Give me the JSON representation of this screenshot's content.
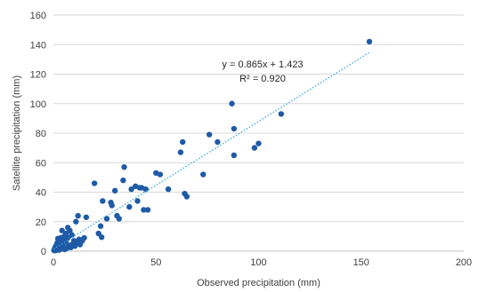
{
  "chart_data": {
    "type": "scatter",
    "xlabel": "Observed precipitation (mm)",
    "ylabel": "Satellite precipitation (mm)",
    "xlim": [
      0,
      200
    ],
    "ylim": [
      0,
      160
    ],
    "xticks": [
      0,
      50,
      100,
      150,
      200
    ],
    "yticks": [
      0,
      20,
      40,
      60,
      80,
      100,
      120,
      140,
      160
    ],
    "grid": "horizontal",
    "point_color": "#1f5aa6",
    "trendline": {
      "type": "linear",
      "slope": 0.865,
      "intercept": 1.423,
      "color": "#39a9dc",
      "style": "dotted",
      "x_range": [
        0,
        154
      ]
    },
    "annotations": {
      "equation": "y = 0.865x + 1.423",
      "r_squared": "R² = 0.920"
    },
    "series": [
      {
        "points": [
          [
            0.3,
            0.5
          ],
          [
            0.5,
            1.2
          ],
          [
            0.8,
            2.5
          ],
          [
            1.0,
            0.4
          ],
          [
            1.2,
            3.5
          ],
          [
            1.5,
            1.0
          ],
          [
            1.8,
            5.5
          ],
          [
            2.0,
            2.0
          ],
          [
            2.2,
            8.5
          ],
          [
            2.5,
            4.0
          ],
          [
            2.8,
            0.8
          ],
          [
            3.0,
            6.0
          ],
          [
            3.2,
            2.8
          ],
          [
            3.5,
            9.0
          ],
          [
            3.8,
            1.5
          ],
          [
            4.0,
            5.0
          ],
          [
            4.2,
            14.0
          ],
          [
            4.5,
            7.5
          ],
          [
            5.0,
            3.0
          ],
          [
            5.2,
            10.0
          ],
          [
            5.5,
            1.2
          ],
          [
            6.0,
            6.5
          ],
          [
            6.2,
            12.0
          ],
          [
            6.5,
            2.0
          ],
          [
            7.0,
            16.0
          ],
          [
            7.2,
            9.0
          ],
          [
            7.5,
            4.0
          ],
          [
            8.0,
            14.0
          ],
          [
            8.5,
            2.5
          ],
          [
            9.0,
            11.0
          ],
          [
            9.5,
            5.0
          ],
          [
            10.0,
            7.0
          ],
          [
            10.5,
            3.5
          ],
          [
            11.0,
            20.0
          ],
          [
            11.5,
            6.0
          ],
          [
            12.0,
            24.0
          ],
          [
            12.5,
            8.0
          ],
          [
            13.0,
            4.5
          ],
          [
            14.0,
            7.0
          ],
          [
            15.0,
            9.0
          ],
          [
            16.0,
            23.0
          ],
          [
            20.0,
            46.0
          ],
          [
            22.0,
            12.0
          ],
          [
            23.0,
            17.0
          ],
          [
            23.5,
            9.5
          ],
          [
            24.0,
            34.0
          ],
          [
            26.0,
            22.0
          ],
          [
            28.0,
            33.0
          ],
          [
            28.5,
            31.0
          ],
          [
            30.0,
            41.0
          ],
          [
            31.0,
            24.0
          ],
          [
            32.0,
            22.0
          ],
          [
            34.0,
            48.0
          ],
          [
            34.5,
            57.0
          ],
          [
            37.0,
            30.0
          ],
          [
            38.0,
            42.0
          ],
          [
            40.0,
            44.0
          ],
          [
            41.0,
            34.0
          ],
          [
            42.0,
            43.0
          ],
          [
            43.0,
            43.0
          ],
          [
            44.0,
            28.0
          ],
          [
            45.0,
            42.0
          ],
          [
            46.0,
            28.0
          ],
          [
            50.0,
            53.0
          ],
          [
            52.0,
            52.0
          ],
          [
            56.0,
            42.0
          ],
          [
            62.0,
            67.0
          ],
          [
            63.0,
            74.0
          ],
          [
            64.0,
            39.0
          ],
          [
            65.0,
            37.0
          ],
          [
            73.0,
            52.0
          ],
          [
            76.0,
            79.0
          ],
          [
            80.0,
            74.0
          ],
          [
            87.0,
            100.0
          ],
          [
            88.0,
            83.0
          ],
          [
            88.0,
            65.0
          ],
          [
            98.0,
            70.0
          ],
          [
            100.0,
            73.0
          ],
          [
            111.0,
            93.0
          ],
          [
            154.0,
            142.0
          ]
        ]
      }
    ]
  }
}
